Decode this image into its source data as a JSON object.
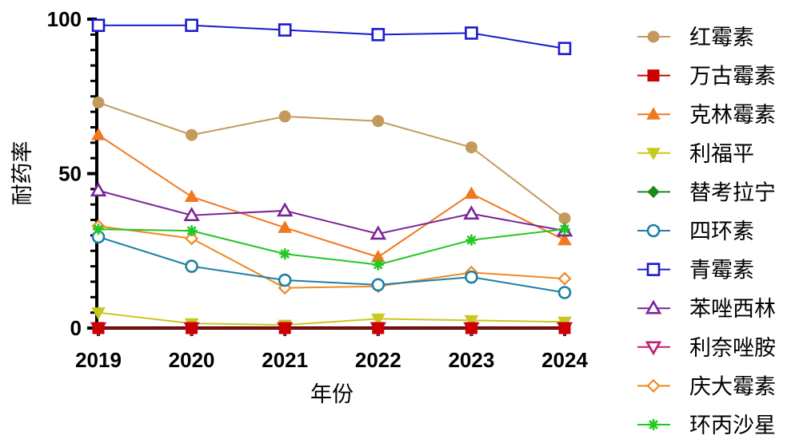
{
  "chart_data": {
    "type": "line",
    "xlabel": "年份",
    "ylabel": "耐药率",
    "x": [
      "2019",
      "2020",
      "2021",
      "2022",
      "2023",
      "2024"
    ],
    "ylim": [
      0,
      100
    ],
    "yticks": [
      "0",
      "50",
      "100"
    ],
    "grid": false,
    "legend_position": "right",
    "series": [
      {
        "name": "红霉素",
        "color": "#c49a5a",
        "marker": "circle-filled",
        "values": [
          73,
          62.5,
          68.5,
          67,
          58.5,
          35.5
        ]
      },
      {
        "name": "万古霉素",
        "color": "#cc0000",
        "marker": "square-filled",
        "values": [
          0,
          0,
          0,
          0,
          0,
          0
        ]
      },
      {
        "name": "克林霉素",
        "color": "#f07820",
        "marker": "triangle-up-filled",
        "values": [
          62.5,
          42.5,
          32.5,
          23,
          43.5,
          28.5
        ]
      },
      {
        "name": "利福平",
        "color": "#c8c820",
        "marker": "triangle-down-filled",
        "values": [
          5,
          1.5,
          1,
          3,
          2.5,
          2
        ]
      },
      {
        "name": "替考拉宁",
        "color": "#1a8a1a",
        "marker": "diamond-filled",
        "values": [
          0,
          0,
          0,
          0,
          0,
          0
        ]
      },
      {
        "name": "四环素",
        "color": "#1f7fa3",
        "marker": "circle-open",
        "values": [
          29.5,
          20,
          15.5,
          14,
          16.5,
          11.5
        ]
      },
      {
        "name": "青霉素",
        "color": "#1a1acc",
        "marker": "square-open",
        "values": [
          98,
          98,
          96.5,
          95,
          95.5,
          90.5
        ]
      },
      {
        "name": "苯唑西林",
        "color": "#7a2596",
        "marker": "triangle-up-open",
        "values": [
          44.5,
          36.5,
          38,
          30.5,
          37,
          31.5
        ]
      },
      {
        "name": "利奈唑胺",
        "color": "#c01e6e",
        "marker": "triangle-down-open",
        "values": [
          0,
          0,
          0,
          0,
          0,
          0
        ]
      },
      {
        "name": "庆大霉素",
        "color": "#f08a20",
        "marker": "diamond-open",
        "values": [
          33,
          29,
          13,
          13.5,
          18,
          16
        ]
      },
      {
        "name": "环丙沙星",
        "color": "#22c822",
        "marker": "asterisk",
        "values": [
          32,
          31.5,
          24,
          20.5,
          28.5,
          32
        ]
      }
    ]
  }
}
